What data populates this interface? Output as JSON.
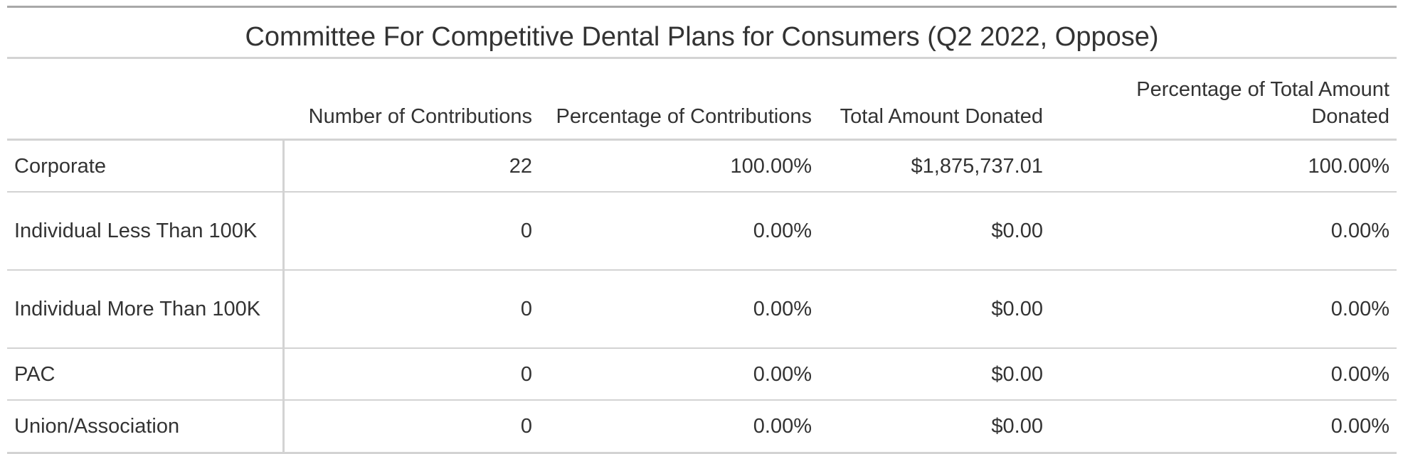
{
  "table": {
    "title": "Committee For Competitive Dental Plans for Consumers (Q2 2022, Oppose)",
    "columns": [
      "",
      "Number of Contributions",
      "Percentage of Contributions",
      "Total Amount Donated",
      "Percentage of Total Amount Donated"
    ],
    "rows": [
      {
        "category": "Corporate",
        "number": "22",
        "pct_contributions": "100.00%",
        "total_amount": "$1,875,737.01",
        "pct_total_amount": "100.00%"
      },
      {
        "category": "Individual Less Than 100K",
        "number": "0",
        "pct_contributions": "0.00%",
        "total_amount": "$0.00",
        "pct_total_amount": "0.00%"
      },
      {
        "category": "Individual More Than 100K",
        "number": "0",
        "pct_contributions": "0.00%",
        "total_amount": "$0.00",
        "pct_total_amount": "0.00%"
      },
      {
        "category": "PAC",
        "number": "0",
        "pct_contributions": "0.00%",
        "total_amount": "$0.00",
        "pct_total_amount": "0.00%"
      },
      {
        "category": "Union/Association",
        "number": "0",
        "pct_contributions": "0.00%",
        "total_amount": "$0.00",
        "pct_total_amount": "0.00%"
      }
    ]
  }
}
